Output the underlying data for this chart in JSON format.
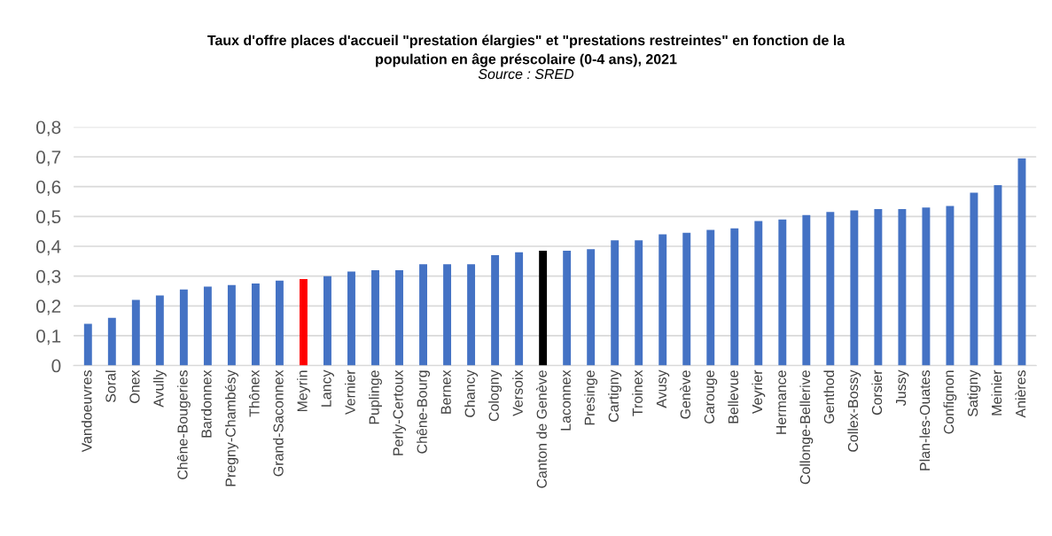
{
  "chart_data": {
    "type": "bar",
    "title": "Taux d'offre places d'accueil \"prestation élargies\" et \"prestations restreintes\" en fonction de la\npopulation en âge préscolaire (0-4 ans), 2021",
    "subtitle": "Source : SRED",
    "categories": [
      "Vandoeuvres",
      "Soral",
      "Onex",
      "Avully",
      "Chêne-Bougeries",
      "Bardonnex",
      "Pregny-Chambésy",
      "Thônex",
      "Grand-Saconnex",
      "Meyrin",
      "Lancy",
      "Vernier",
      "Puplinge",
      "Perly-Certoux",
      "Chêne-Bourg",
      "Bernex",
      "Chancy",
      "Cologny",
      "Versoix",
      "Canton de Genève",
      "Laconnex",
      "Presinge",
      "Cartigny",
      "Troinex",
      "Avusy",
      "Genève",
      "Carouge",
      "Bellevue",
      "Veyrier",
      "Hermance",
      "Collonge-Bellerive",
      "Genthod",
      "Collex-Bossy",
      "Corsier",
      "Jussy",
      "Plan-les-Ouates",
      "Confignon",
      "Satigny",
      "Meinier",
      "Anières"
    ],
    "values": [
      0.14,
      0.16,
      0.22,
      0.235,
      0.255,
      0.265,
      0.27,
      0.275,
      0.285,
      0.29,
      0.3,
      0.315,
      0.32,
      0.32,
      0.34,
      0.34,
      0.34,
      0.37,
      0.38,
      0.385,
      0.385,
      0.39,
      0.42,
      0.42,
      0.44,
      0.445,
      0.455,
      0.46,
      0.485,
      0.49,
      0.505,
      0.515,
      0.52,
      0.525,
      0.525,
      0.53,
      0.535,
      0.58,
      0.605,
      0.695
    ],
    "colors": [
      "#4472c4",
      "#4472c4",
      "#4472c4",
      "#4472c4",
      "#4472c4",
      "#4472c4",
      "#4472c4",
      "#4472c4",
      "#4472c4",
      "#ff0000",
      "#4472c4",
      "#4472c4",
      "#4472c4",
      "#4472c4",
      "#4472c4",
      "#4472c4",
      "#4472c4",
      "#4472c4",
      "#4472c4",
      "#000000",
      "#4472c4",
      "#4472c4",
      "#4472c4",
      "#4472c4",
      "#4472c4",
      "#4472c4",
      "#4472c4",
      "#4472c4",
      "#4472c4",
      "#4472c4",
      "#4472c4",
      "#4472c4",
      "#4472c4",
      "#4472c4",
      "#4472c4",
      "#4472c4",
      "#4472c4",
      "#4472c4",
      "#4472c4",
      "#4472c4"
    ],
    "ylim": [
      0,
      0.8
    ],
    "yticks": [
      {
        "value": 0,
        "label": "0"
      },
      {
        "value": 0.1,
        "label": "0,1"
      },
      {
        "value": 0.2,
        "label": "0,2"
      },
      {
        "value": 0.3,
        "label": "0,3"
      },
      {
        "value": 0.4,
        "label": "0,4"
      },
      {
        "value": 0.5,
        "label": "0,5"
      },
      {
        "value": 0.6,
        "label": "0,6"
      },
      {
        "value": 0.7,
        "label": "0,7"
      },
      {
        "value": 0.8,
        "label": "0,8"
      }
    ],
    "grid": "y"
  }
}
